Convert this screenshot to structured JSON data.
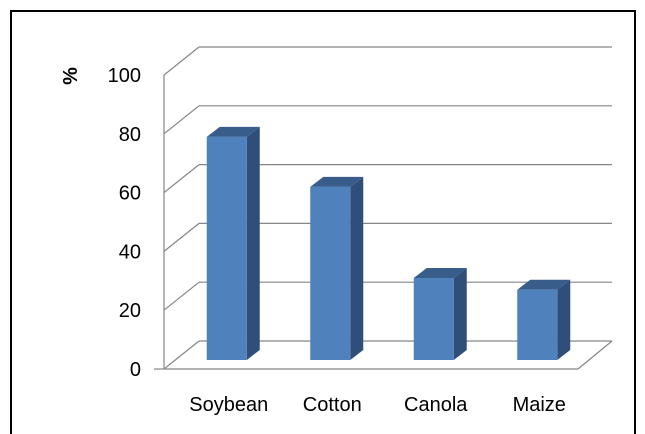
{
  "chart_data": {
    "type": "bar",
    "categories": [
      "Soybean",
      "Cotton",
      "Canola",
      "Maize"
    ],
    "values": [
      81,
      64,
      33,
      29
    ],
    "title": "",
    "xlabel": "",
    "ylabel": "%",
    "ylim": [
      0,
      100
    ],
    "yticks": [
      "0",
      "20",
      "40",
      "60",
      "80",
      "100"
    ],
    "grid": true,
    "legend": "none",
    "style": "3d-column",
    "colors": {
      "bar_front": "#4f81bd",
      "bar_side": "#2f4f7a",
      "bar_top": "#385d8a",
      "grid": "#868686"
    }
  }
}
